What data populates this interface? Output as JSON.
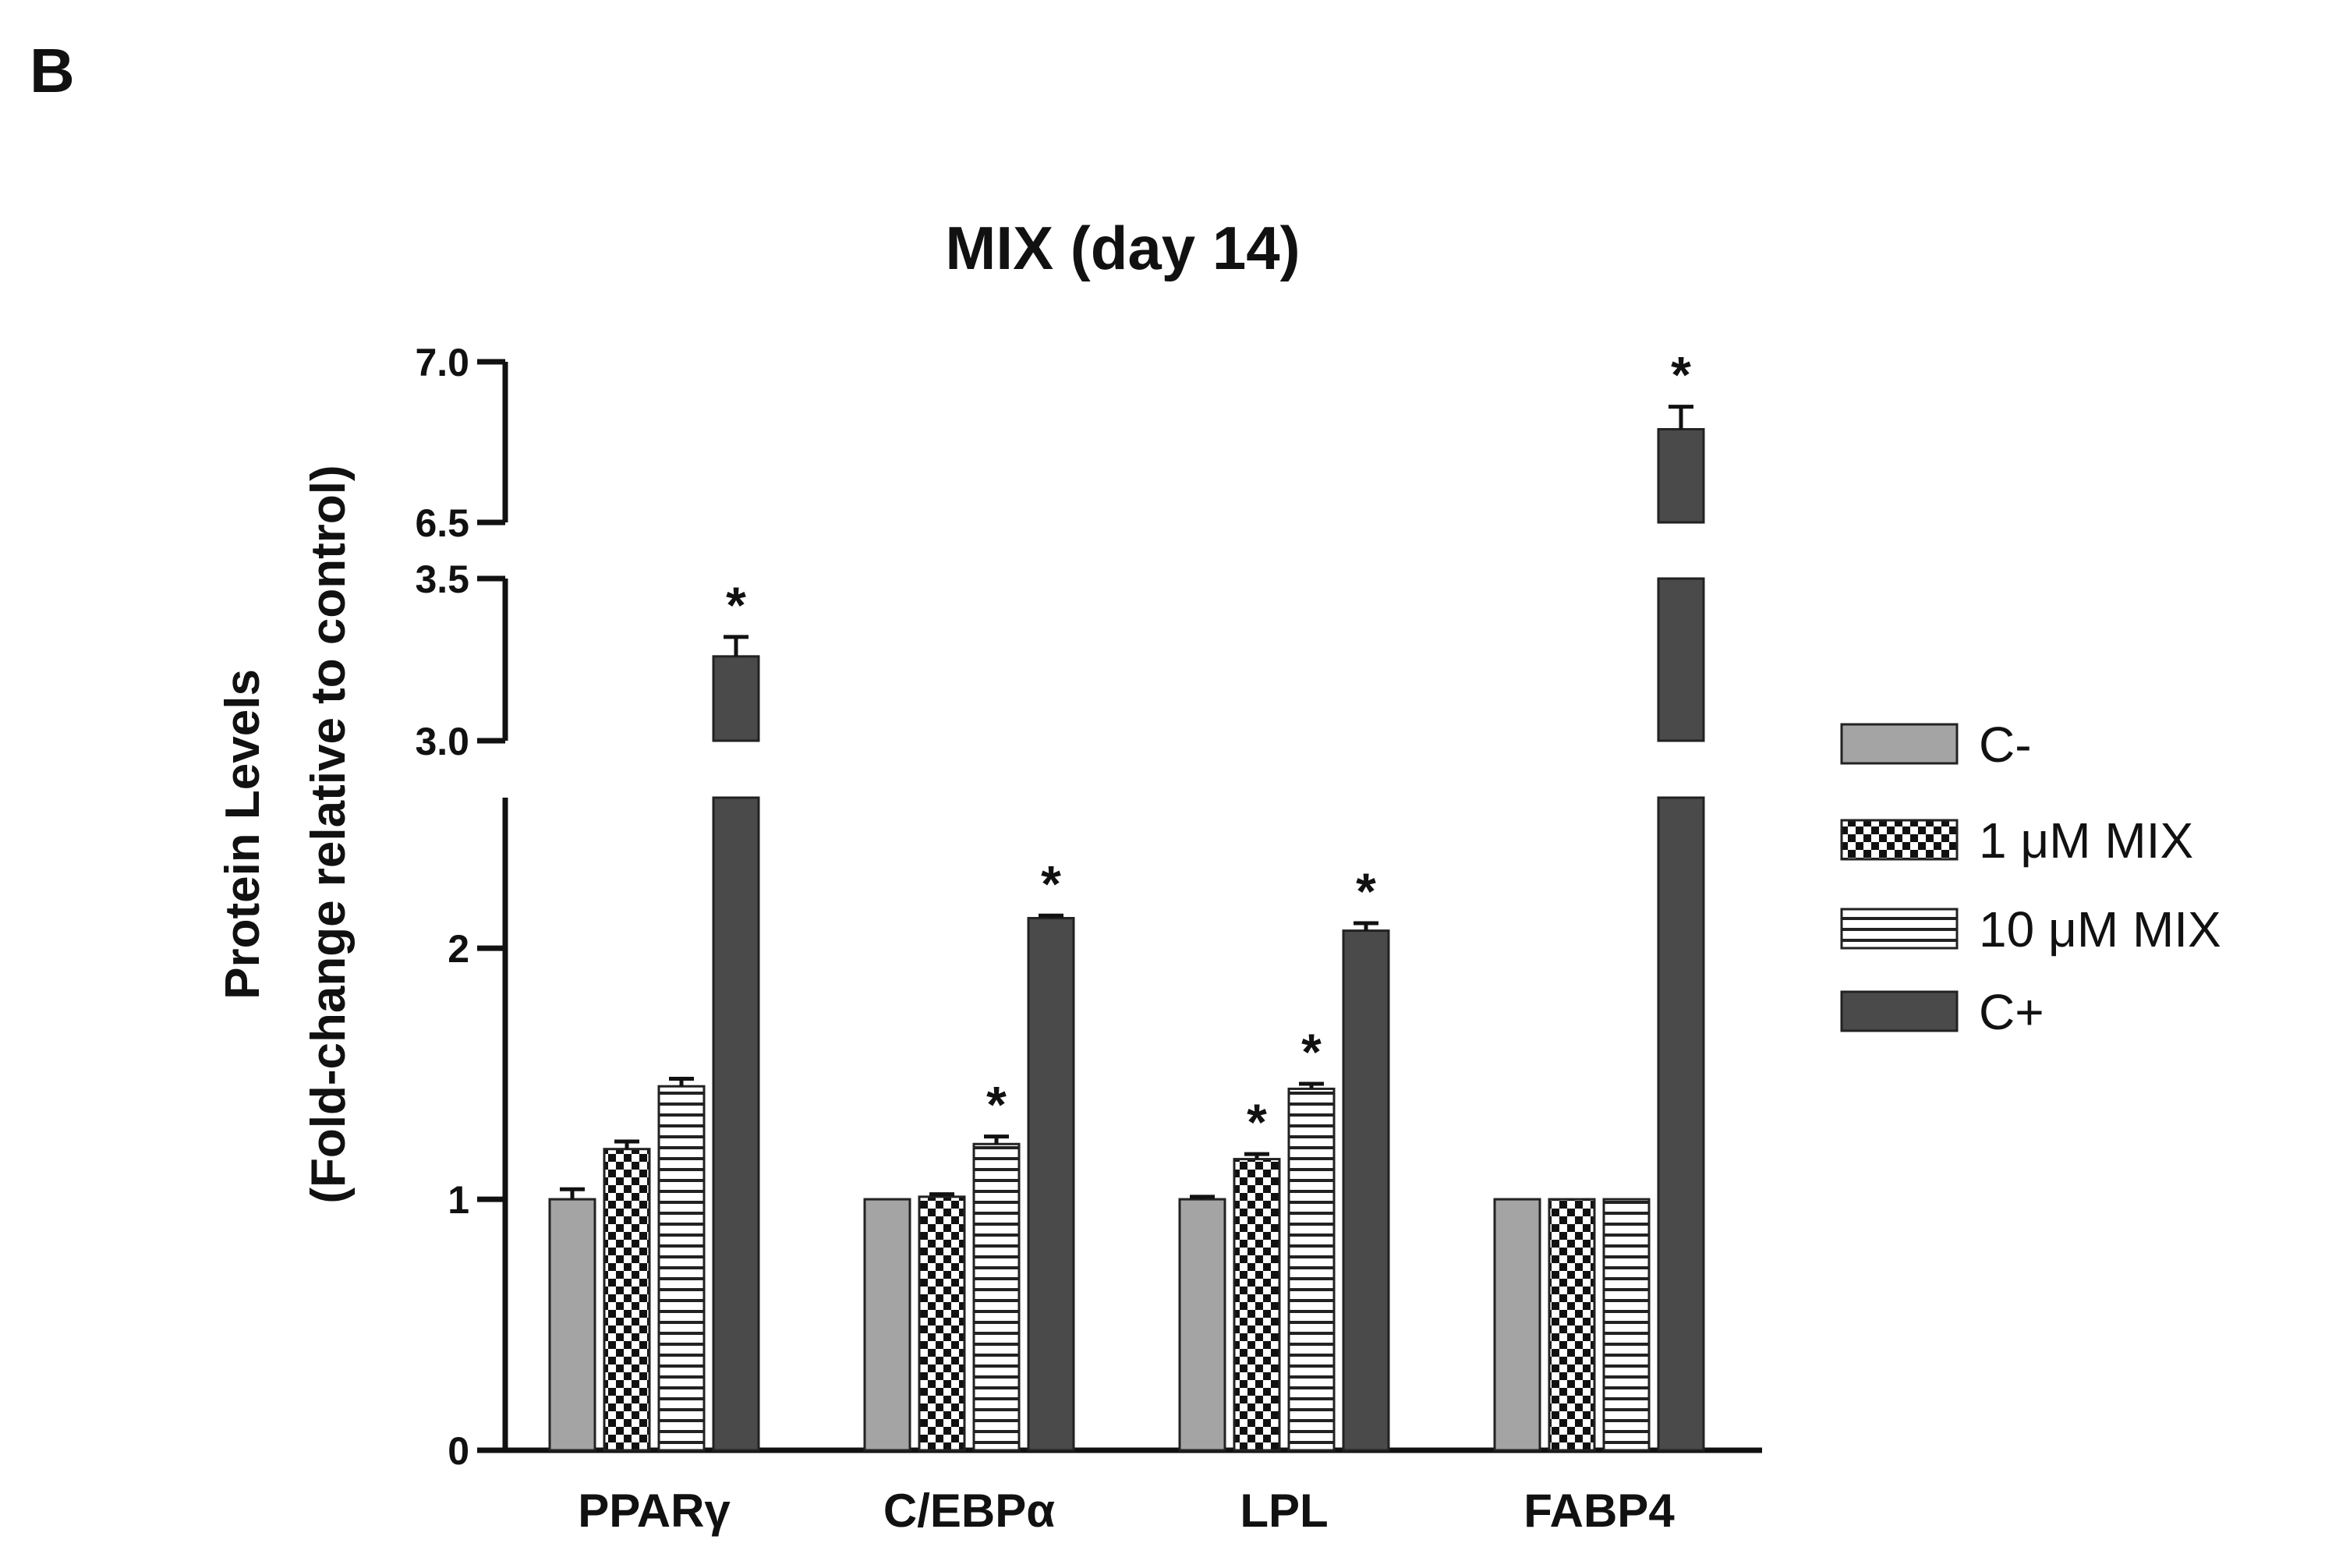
{
  "panel_label": "B",
  "colors": {
    "c_minus": "#a4a4a4",
    "c_plus": "#4a4a4a",
    "axis": "#111111",
    "bar_edge": "#222222"
  },
  "chart_data": {
    "type": "bar",
    "title": "MIX (day 14)",
    "ylabel_line1": "Protein Levels",
    "ylabel_line2": "(Fold-change relative to control)",
    "xlabel": "",
    "categories": [
      "PPARγ",
      "C/EBPα",
      "LPL",
      "FABP4"
    ],
    "series": [
      {
        "name": "C-",
        "pattern": "solid-light-gray",
        "values": [
          1.0,
          1.0,
          1.0,
          1.0
        ],
        "errors": [
          0.04,
          0.0,
          0.01,
          0.0
        ],
        "significant": [
          false,
          false,
          false,
          false
        ]
      },
      {
        "name": "1 μM MIX",
        "pattern": "checkerboard",
        "values": [
          1.2,
          1.01,
          1.16,
          1.0
        ],
        "errors": [
          0.03,
          0.01,
          0.02,
          0.0
        ],
        "significant": [
          false,
          false,
          true,
          false
        ]
      },
      {
        "name": "10 μM MIX",
        "pattern": "horizontal-stripes",
        "values": [
          1.45,
          1.22,
          1.44,
          1.0
        ],
        "errors": [
          0.03,
          0.03,
          0.02,
          0.0
        ],
        "significant": [
          false,
          true,
          true,
          false
        ]
      },
      {
        "name": "C+",
        "pattern": "solid-dark-gray",
        "values": [
          3.26,
          2.12,
          2.07,
          6.79
        ],
        "errors": [
          0.06,
          0.01,
          0.03,
          0.07
        ],
        "significant": [
          true,
          true,
          true,
          true
        ]
      }
    ],
    "broken_y_axis": {
      "segments": [
        {
          "range": [
            0,
            2.6
          ],
          "ticks": [
            "0",
            "1",
            "2"
          ],
          "tick_values": [
            0,
            1,
            2
          ]
        },
        {
          "range": [
            3.0,
            3.5
          ],
          "ticks": [
            "3.0",
            "3.5"
          ],
          "tick_values": [
            3.0,
            3.5
          ]
        },
        {
          "range": [
            6.5,
            7.0
          ],
          "ticks": [
            "6.5",
            "7.0"
          ],
          "tick_values": [
            6.5,
            7.0
          ]
        }
      ]
    },
    "significance_marker": "*",
    "legend_position": "right",
    "grid": false
  }
}
